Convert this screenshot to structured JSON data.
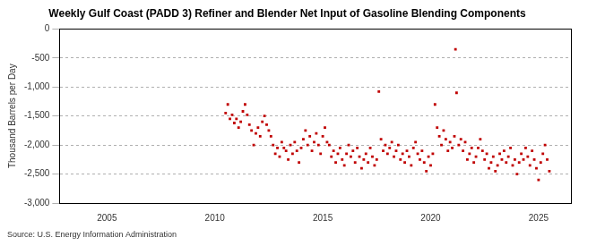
{
  "chart_data": {
    "type": "scatter",
    "title": "Weekly Gulf Coast (PADD 3) Refiner and Blender Net Input of Gasoline Blending Components",
    "y_label": "Thousand Barrels per Day",
    "source": "Source: U.S. Energy Information Administration",
    "color": "#c00000",
    "marker": "square",
    "grid": true,
    "xlim": [
      2002.8,
      2026.5
    ],
    "xticks": [
      2005,
      2010,
      2015,
      2020,
      2025
    ],
    "ylim": [
      -3000,
      0
    ],
    "yticks": [
      {
        "value": -3000,
        "label": "-3,000"
      },
      {
        "value": -2500,
        "label": "-2,500"
      },
      {
        "value": -2000,
        "label": "-2,000"
      },
      {
        "value": -1500,
        "label": "-1,500"
      },
      {
        "value": -1000,
        "label": "-1,000"
      },
      -500,
      0
    ],
    "x": [
      2010.5,
      2010.6,
      2010.7,
      2010.8,
      2010.9,
      2011.0,
      2011.1,
      2011.2,
      2011.3,
      2011.4,
      2011.5,
      2011.6,
      2011.7,
      2011.8,
      2011.9,
      2012.0,
      2012.1,
      2012.2,
      2012.3,
      2012.4,
      2012.5,
      2012.6,
      2012.7,
      2012.8,
      2012.9,
      2013.0,
      2013.1,
      2013.2,
      2013.3,
      2013.4,
      2013.5,
      2013.6,
      2013.7,
      2013.8,
      2013.9,
      2014.0,
      2014.1,
      2014.2,
      2014.3,
      2014.4,
      2014.5,
      2014.6,
      2014.7,
      2014.8,
      2014.9,
      2015.0,
      2015.1,
      2015.2,
      2015.3,
      2015.4,
      2015.5,
      2015.6,
      2015.7,
      2015.8,
      2015.9,
      2016.0,
      2016.1,
      2016.2,
      2016.3,
      2016.4,
      2016.5,
      2016.6,
      2016.7,
      2016.8,
      2016.9,
      2017.0,
      2017.1,
      2017.2,
      2017.3,
      2017.4,
      2017.5,
      2017.6,
      2017.7,
      2017.8,
      2017.9,
      2018.0,
      2018.1,
      2018.2,
      2018.3,
      2018.4,
      2018.5,
      2018.6,
      2018.7,
      2018.8,
      2018.9,
      2019.0,
      2019.1,
      2019.2,
      2019.3,
      2019.4,
      2019.5,
      2019.6,
      2019.7,
      2019.8,
      2019.9,
      2020.0,
      2020.1,
      2020.2,
      2020.3,
      2020.4,
      2020.5,
      2020.6,
      2020.7,
      2020.8,
      2020.9,
      2021.0,
      2021.1,
      2021.15,
      2021.2,
      2021.3,
      2021.4,
      2021.5,
      2021.6,
      2021.7,
      2021.8,
      2021.9,
      2022.0,
      2022.1,
      2022.2,
      2022.3,
      2022.4,
      2022.5,
      2022.6,
      2022.7,
      2022.8,
      2022.9,
      2023.0,
      2023.1,
      2023.2,
      2023.3,
      2023.4,
      2023.5,
      2023.6,
      2023.7,
      2023.8,
      2023.9,
      2024.0,
      2024.1,
      2024.2,
      2024.3,
      2024.4,
      2024.5,
      2024.6,
      2024.7,
      2024.8,
      2024.9,
      2025.0,
      2025.1,
      2025.2,
      2025.3,
      2025.4,
      2025.5
    ],
    "values": [
      -1450,
      -1300,
      -1550,
      -1480,
      -1620,
      -1550,
      -1700,
      -1600,
      -1420,
      -1300,
      -1480,
      -1650,
      -1750,
      -2000,
      -1800,
      -1700,
      -1850,
      -1600,
      -1500,
      -1650,
      -1750,
      -1850,
      -2000,
      -2150,
      -2050,
      -2200,
      -1950,
      -2050,
      -2100,
      -2250,
      -2000,
      -2150,
      -1950,
      -2100,
      -2300,
      -2050,
      -1900,
      -1750,
      -2000,
      -1850,
      -2100,
      -1950,
      -1800,
      -2000,
      -2150,
      -1850,
      -1700,
      -1950,
      -2000,
      -2200,
      -2100,
      -2300,
      -2150,
      -2050,
      -2250,
      -2350,
      -2150,
      -2000,
      -2200,
      -2100,
      -2300,
      -2050,
      -2200,
      -2400,
      -2250,
      -2150,
      -2300,
      -2050,
      -2200,
      -2350,
      -2250,
      -1080,
      -1900,
      -2100,
      -2000,
      -2150,
      -2050,
      -1950,
      -2200,
      -2100,
      -2000,
      -2250,
      -2150,
      -2300,
      -2100,
      -2200,
      -2350,
      -2050,
      -1950,
      -2150,
      -2250,
      -2100,
      -2300,
      -2450,
      -2200,
      -2350,
      -2150,
      -1300,
      -1700,
      -1850,
      -2000,
      -1750,
      -1900,
      -2100,
      -1950,
      -2050,
      -1850,
      -350,
      -1100,
      -2000,
      -1900,
      -2100,
      -1950,
      -2250,
      -2150,
      -2050,
      -2300,
      -2200,
      -2050,
      -1900,
      -2100,
      -2250,
      -2150,
      -2400,
      -2300,
      -2200,
      -2450,
      -2350,
      -2150,
      -2250,
      -2100,
      -2300,
      -2200,
      -2050,
      -2350,
      -2250,
      -2500,
      -2300,
      -2150,
      -2250,
      -2050,
      -2200,
      -2350,
      -2100,
      -2250,
      -2400,
      -2600,
      -2300,
      -2150,
      -2000,
      -2250,
      -2450
    ]
  }
}
